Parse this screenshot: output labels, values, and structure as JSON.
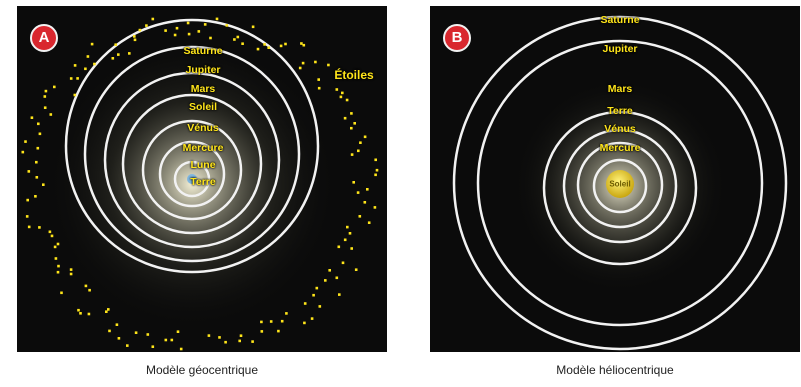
{
  "geocentric": {
    "badge": "A",
    "caption": "Modèle géocentrique",
    "stars_label": "Étoiles",
    "planet_labels": [
      "Saturne",
      "Jupiter",
      "Mars",
      "Soleil",
      "Vénus",
      "Mercure",
      "Lune",
      "Terre"
    ]
  },
  "heliocentric": {
    "badge": "B",
    "caption": "Modèle héliocentrique",
    "center_label": "Soleil",
    "planet_labels": [
      "Saturne",
      "Jupiter",
      "Mars",
      "Terre",
      "Vénus",
      "Mercure"
    ]
  },
  "colors": {
    "panel_background": "#0b0b0b",
    "orbit": "#f2f2f2",
    "label": "#ffe51a",
    "badge": "#d9272e",
    "stars": "#ffe51a",
    "sun": "#e8cf2a"
  }
}
